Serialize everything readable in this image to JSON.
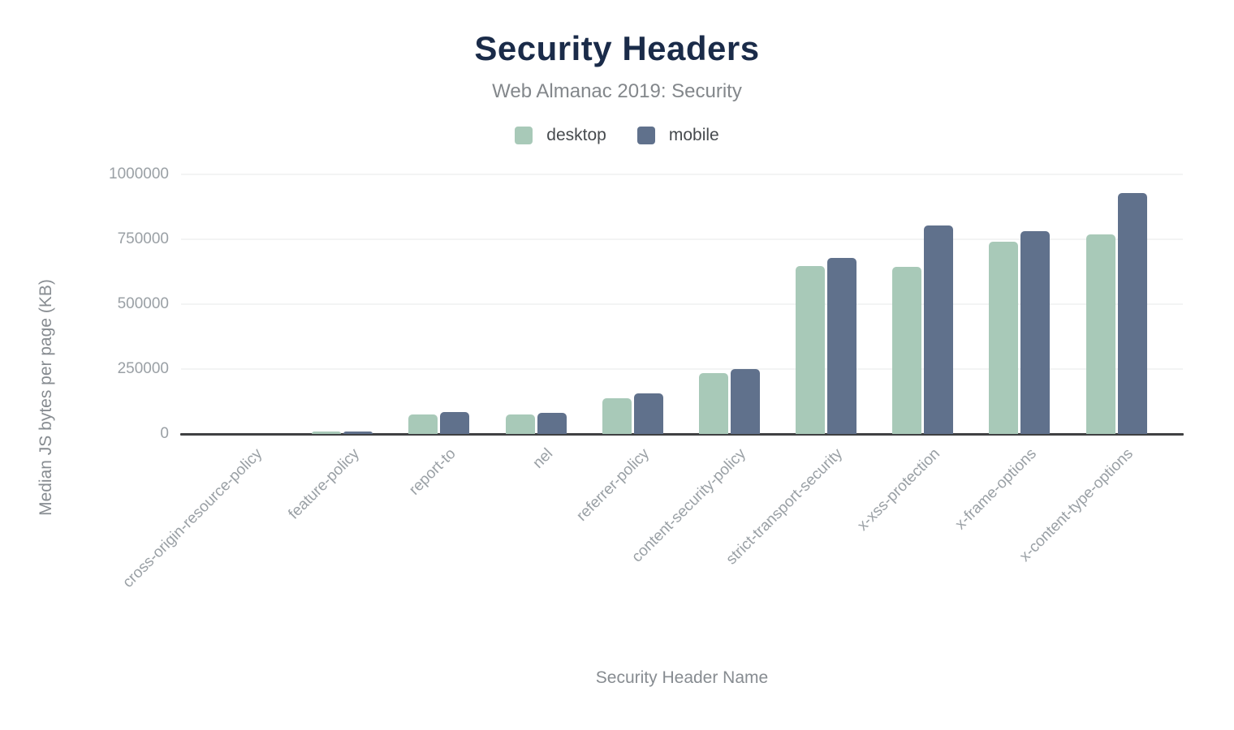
{
  "chart_data": {
    "type": "bar",
    "title": "Security Headers",
    "subtitle": "Web Almanac 2019: Security",
    "xlabel": "Security Header Name",
    "ylabel": "Median JS bytes per page (KB)",
    "categories": [
      "cross-origin-resource-policy",
      "feature-policy",
      "report-to",
      "nel",
      "referrer-policy",
      "content-security-policy",
      "strict-transport-security",
      "x-xss-protection",
      "x-frame-options",
      "x-content-type-options"
    ],
    "series": [
      {
        "name": "desktop",
        "color": "#a8c9b8",
        "values": [
          0,
          9000,
          76000,
          76000,
          139000,
          236000,
          648000,
          644000,
          741000,
          769000
        ]
      },
      {
        "name": "mobile",
        "color": "#60718c",
        "values": [
          0,
          10000,
          83000,
          82000,
          155000,
          250000,
          679000,
          804000,
          782000,
          928000
        ]
      }
    ],
    "ylim": [
      0,
      1000000
    ],
    "yticks": [
      0,
      250000,
      500000,
      750000,
      1000000
    ],
    "ytick_labels": [
      "0",
      "250000",
      "500000",
      "750000",
      "1000000"
    ],
    "grid": true,
    "legend_position": "top"
  },
  "colors": {
    "title": "#1a2b49",
    "subtitle": "#83878b",
    "axis_line": "#3f4042",
    "gridline": "#f3f4f4",
    "tick_label": "#9aa0a5",
    "axis_title": "#878c91",
    "background": "#ffffff"
  }
}
